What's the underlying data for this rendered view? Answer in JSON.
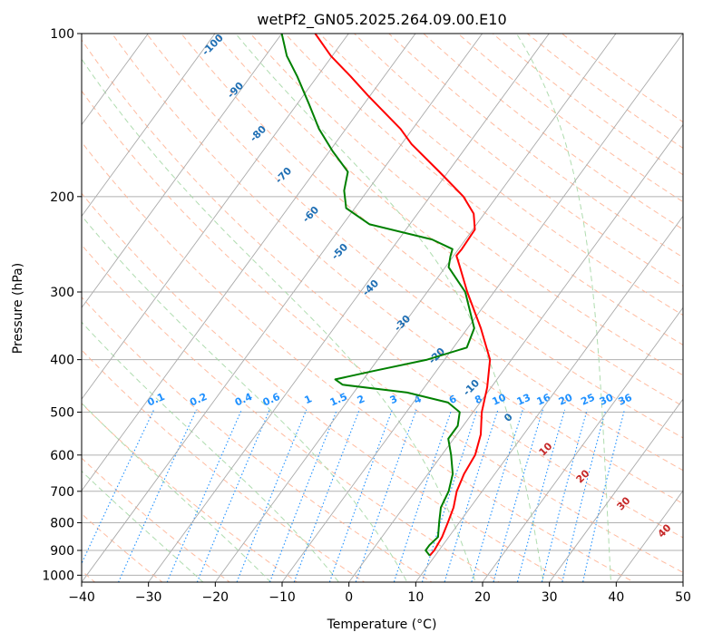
{
  "chart_data": {
    "type": "skew-t log-p",
    "title": "wetPf2_GN05.2025.264.09.00.E10",
    "xlabel": "Temperature (°C)",
    "ylabel": "Pressure (hPa)",
    "xlim": [
      -40,
      50
    ],
    "ylim": [
      1030,
      100
    ],
    "x_ticks": [
      -40,
      -30,
      -20,
      -10,
      0,
      10,
      20,
      30,
      40,
      50
    ],
    "x_tick_labels": [
      "−40",
      "−30",
      "−20",
      "−10",
      "0",
      "10",
      "20",
      "30",
      "40",
      "50"
    ],
    "y_ticks": [
      100,
      200,
      300,
      400,
      500,
      600,
      700,
      800,
      900,
      1000
    ],
    "y_tick_labels": [
      "100",
      "200",
      "300",
      "400",
      "500",
      "600",
      "700",
      "800",
      "900",
      "1000"
    ],
    "series": [
      {
        "name": "Temperature",
        "color": "#ff0000",
        "points": [
          {
            "p": 920,
            "t": 9.2
          },
          {
            "p": 900,
            "t": 9.3
          },
          {
            "p": 850,
            "t": 9.0
          },
          {
            "p": 800,
            "t": 8.3
          },
          {
            "p": 750,
            "t": 7.5
          },
          {
            "p": 700,
            "t": 6.2
          },
          {
            "p": 650,
            "t": 5.4
          },
          {
            "p": 600,
            "t": 5.0
          },
          {
            "p": 550,
            "t": 3.6
          },
          {
            "p": 500,
            "t": 1.3
          },
          {
            "p": 450,
            "t": -0.6
          },
          {
            "p": 400,
            "t": -3.2
          },
          {
            "p": 350,
            "t": -8.0
          },
          {
            "p": 300,
            "t": -14.0
          },
          {
            "p": 270,
            "t": -17.8
          },
          {
            "p": 257,
            "t": -19.6
          },
          {
            "p": 250,
            "t": -19.5
          },
          {
            "p": 230,
            "t": -19.7
          },
          {
            "p": 215,
            "t": -21.6
          },
          {
            "p": 200,
            "t": -25.0
          },
          {
            "p": 180,
            "t": -31.3
          },
          {
            "p": 160,
            "t": -38.5
          },
          {
            "p": 150,
            "t": -41.8
          },
          {
            "p": 130,
            "t": -50.4
          },
          {
            "p": 120,
            "t": -55.0
          },
          {
            "p": 110,
            "t": -60.2
          },
          {
            "p": 100,
            "t": -65.0
          }
        ]
      },
      {
        "name": "Dewpoint",
        "color": "#008000",
        "points": [
          {
            "p": 920,
            "t": 9.2
          },
          {
            "p": 900,
            "t": 8.0
          },
          {
            "p": 880,
            "t": 8.0
          },
          {
            "p": 850,
            "t": 8.4
          },
          {
            "p": 800,
            "t": 7.0
          },
          {
            "p": 750,
            "t": 5.6
          },
          {
            "p": 700,
            "t": 5.0
          },
          {
            "p": 650,
            "t": 3.7
          },
          {
            "p": 600,
            "t": 1.4
          },
          {
            "p": 560,
            "t": -0.8
          },
          {
            "p": 530,
            "t": -0.8
          },
          {
            "p": 500,
            "t": -2.0
          },
          {
            "p": 480,
            "t": -4.8
          },
          {
            "p": 460,
            "t": -12.0
          },
          {
            "p": 445,
            "t": -22.5
          },
          {
            "p": 435,
            "t": -24.2
          },
          {
            "p": 420,
            "t": -19.5
          },
          {
            "p": 400,
            "t": -12.6
          },
          {
            "p": 380,
            "t": -8.0
          },
          {
            "p": 350,
            "t": -9.0
          },
          {
            "p": 300,
            "t": -14.3
          },
          {
            "p": 270,
            "t": -19.5
          },
          {
            "p": 258,
            "t": -20.4
          },
          {
            "p": 250,
            "t": -20.9
          },
          {
            "p": 240,
            "t": -25.0
          },
          {
            "p": 225,
            "t": -36.0
          },
          {
            "p": 210,
            "t": -41.3
          },
          {
            "p": 195,
            "t": -43.5
          },
          {
            "p": 180,
            "t": -45.0
          },
          {
            "p": 165,
            "t": -49.5
          },
          {
            "p": 150,
            "t": -54.0
          },
          {
            "p": 135,
            "t": -58.2
          },
          {
            "p": 120,
            "t": -63.0
          },
          {
            "p": 110,
            "t": -66.8
          },
          {
            "p": 100,
            "t": -70.0
          }
        ]
      }
    ],
    "reference_lines": {
      "isotherms": {
        "color": "#aaaaaa",
        "step_c": 10,
        "from_c": -190,
        "to_c": 50
      },
      "dry_adiabats": {
        "color": "#ffb090",
        "theta_c": [
          -70,
          -60,
          -50,
          -40,
          -30,
          -20,
          -10,
          0,
          10,
          20,
          30,
          40,
          50,
          60,
          70,
          80,
          90,
          100,
          110,
          120,
          130,
          140,
          150,
          160,
          170,
          180,
          190,
          200
        ]
      },
      "moist_adiabats": {
        "color": "#a6d8a6",
        "start_t_c": [
          -20,
          -10,
          0,
          10,
          20,
          30,
          40
        ]
      },
      "dry_adiabat_labels": {
        "color": "#1f6fb4",
        "values": [
          -100,
          -90,
          -80,
          -70,
          -60,
          -50,
          -40,
          -30,
          -20,
          -10,
          0,
          10,
          20,
          30,
          40
        ]
      },
      "moist_adiabat_labels": {
        "color": "#c62828",
        "values": [
          10,
          20,
          30,
          40
        ]
      },
      "mixing_ratio": {
        "color": "#1e90ff",
        "values": [
          0.1,
          0.2,
          0.4,
          0.6,
          1,
          1.5,
          2,
          3,
          4,
          6,
          8,
          10,
          13,
          16,
          20,
          25,
          30,
          36
        ],
        "labels": [
          "0.1",
          "0.2",
          "0.4",
          "0.6",
          "1",
          "1.5",
          "2",
          "3",
          "4",
          "6",
          "8",
          "10",
          "13",
          "16",
          "20",
          "25",
          "30",
          "36"
        ]
      }
    }
  }
}
